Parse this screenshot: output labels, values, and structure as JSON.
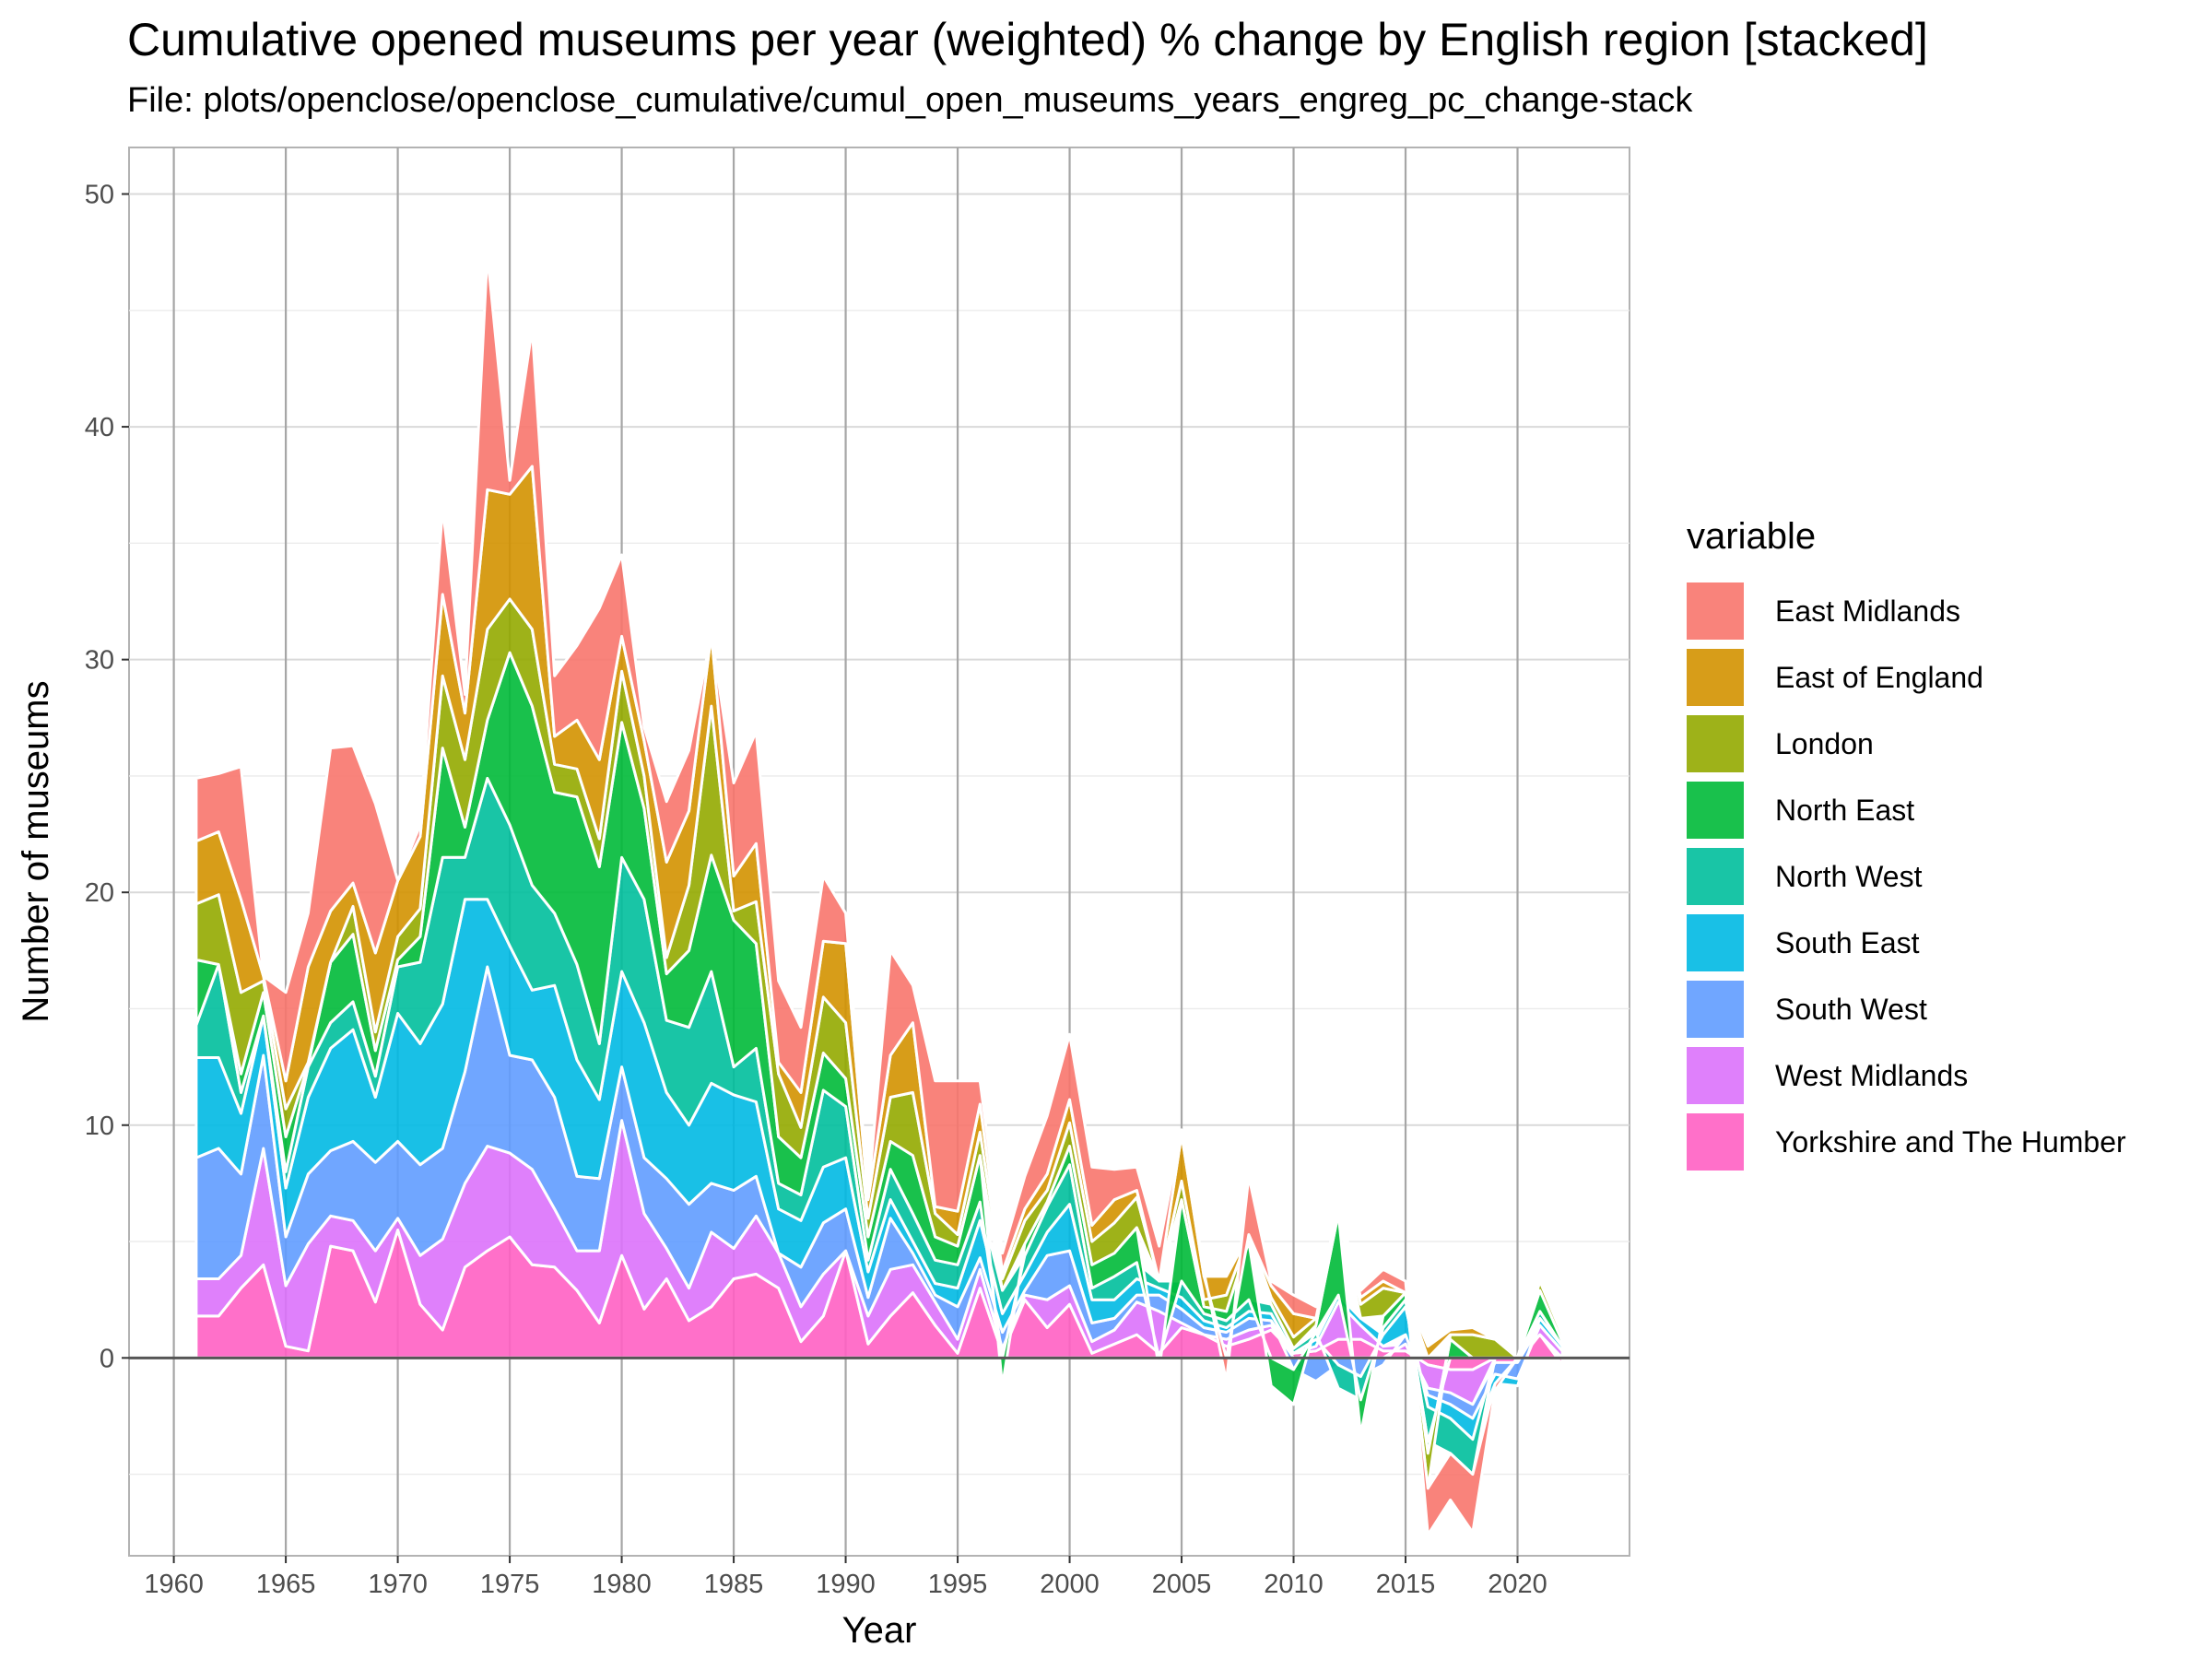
{
  "chart_data": {
    "type": "area",
    "stacked": true,
    "title": "Cumulative opened museums per year (weighted) % change by English region [stacked]",
    "subtitle": "File: plots/openclose/openclose_cumulative/cumul_open_museums_years_engreg_pc_change-stack",
    "xlabel": "Year",
    "ylabel": "Number of museums",
    "xlim": [
      1958,
      2025
    ],
    "ylim": [
      -8.5,
      52
    ],
    "x_ticks": [
      1960,
      1965,
      1970,
      1975,
      1980,
      1985,
      1990,
      1995,
      2000,
      2005,
      2010,
      2015,
      2020
    ],
    "y_ticks": [
      0,
      10,
      20,
      30,
      40,
      50
    ],
    "grid": true,
    "legend_title": "variable",
    "legend_position": "right",
    "x": [
      1961,
      1962,
      1963,
      1964,
      1965,
      1966,
      1967,
      1968,
      1969,
      1970,
      1971,
      1972,
      1973,
      1974,
      1975,
      1976,
      1977,
      1978,
      1979,
      1980,
      1981,
      1982,
      1983,
      1984,
      1985,
      1986,
      1987,
      1988,
      1989,
      1990,
      1991,
      1992,
      1993,
      1994,
      1995,
      1996,
      1997,
      1998,
      1999,
      2000,
      2001,
      2002,
      2003,
      2004,
      2005,
      2006,
      2007,
      2008,
      2009,
      2010,
      2011,
      2012,
      2013,
      2014,
      2015,
      2016,
      2017,
      2018,
      2019,
      2020,
      2021,
      2022
    ],
    "series": [
      {
        "name": "Yorkshire and The Humber",
        "color": "#FF61C3",
        "values": [
          1.8,
          1.8,
          3.0,
          4.0,
          0.5,
          0.3,
          4.8,
          4.6,
          2.4,
          5.5,
          2.3,
          1.2,
          3.9,
          4.6,
          5.2,
          4.0,
          3.9,
          2.9,
          1.5,
          4.4,
          2.1,
          3.4,
          1.6,
          2.2,
          3.4,
          3.6,
          3.0,
          0.7,
          1.8,
          4.6,
          0.6,
          1.8,
          2.8,
          1.4,
          0.2,
          3.0,
          0.2,
          2.5,
          1.3,
          2.3,
          0.2,
          0.6,
          1.0,
          0.2,
          1.3,
          1.0,
          0.5,
          0.8,
          1.2,
          0.2,
          0.3,
          0.8,
          0.8,
          0.3,
          0.3,
          -0.3,
          -0.5,
          -0.5,
          -0.2,
          -0.2,
          1.0,
          -0.3
        ]
      },
      {
        "name": "West Midlands",
        "color": "#DB72FB",
        "values": [
          1.6,
          1.6,
          1.4,
          5.0,
          2.6,
          4.6,
          1.3,
          1.3,
          2.2,
          0.5,
          2.1,
          3.9,
          3.6,
          4.5,
          3.6,
          4.1,
          2.5,
          1.7,
          3.1,
          5.8,
          4.1,
          1.3,
          1.4,
          3.2,
          1.3,
          2.5,
          1.5,
          1.5,
          1.8,
          0.0,
          1.2,
          2.0,
          1.2,
          1.0,
          0.6,
          0.8,
          0.2,
          0.2,
          1.2,
          0.8,
          0.5,
          0.6,
          1.4,
          1.8,
          0.2,
          0.0,
          0.3,
          0.4,
          0.2,
          0.0,
          0.2,
          1.6,
          0.6,
          0.2,
          0.3,
          -1.0,
          -1.0,
          -1.5,
          0.0,
          0.0,
          0.4,
          0.3
        ]
      },
      {
        "name": "South West",
        "color": "#619CFF",
        "values": [
          5.2,
          5.6,
          3.5,
          4.0,
          2.1,
          3.0,
          2.8,
          3.4,
          3.8,
          3.3,
          3.9,
          3.9,
          4.8,
          7.7,
          4.2,
          4.7,
          4.8,
          3.2,
          3.1,
          2.3,
          2.4,
          3.0,
          3.6,
          2.1,
          2.5,
          1.7,
          0.0,
          1.7,
          2.2,
          1.8,
          0.8,
          2.2,
          0.5,
          0.3,
          1.4,
          0.5,
          0.7,
          0.2,
          1.9,
          1.5,
          0.8,
          0.5,
          0.3,
          0.7,
          0.6,
          0.3,
          0.3,
          0.5,
          0.2,
          -0.5,
          -1.0,
          -0.3,
          -0.8,
          -0.3,
          0.4,
          -0.3,
          -0.5,
          -0.6,
          -0.5,
          -0.7,
          0.0,
          0.0
        ]
      },
      {
        "name": "South East",
        "color": "#00B9E3",
        "values": [
          4.3,
          3.9,
          2.6,
          1.7,
          2.1,
          3.3,
          4.4,
          4.8,
          2.8,
          5.5,
          5.2,
          6.2,
          7.4,
          2.9,
          4.7,
          3.0,
          4.8,
          5.0,
          3.4,
          4.1,
          5.8,
          3.7,
          3.4,
          4.3,
          4.1,
          3.2,
          1.9,
          2.0,
          2.4,
          2.2,
          1.1,
          0.8,
          0.5,
          0.5,
          0.8,
          1.6,
          0.8,
          0.7,
          1.0,
          2.0,
          1.0,
          0.8,
          0.7,
          0.3,
          0.5,
          0.3,
          0.2,
          0.3,
          0.3,
          0.0,
          0.3,
          0.3,
          0.3,
          0.5,
          1.2,
          -0.5,
          -0.6,
          -0.9,
          -0.4,
          -0.3,
          0.3,
          0.2
        ]
      },
      {
        "name": "North West",
        "color": "#00BF9C",
        "values": [
          1.4,
          4.0,
          0.9,
          0.0,
          0.7,
          1.3,
          1.1,
          1.2,
          0.9,
          2.0,
          3.5,
          6.3,
          1.8,
          5.2,
          5.2,
          4.5,
          3.1,
          4.1,
          2.4,
          4.9,
          5.3,
          3.1,
          4.2,
          4.8,
          1.2,
          2.3,
          1.1,
          1.1,
          3.3,
          2.2,
          0.5,
          1.3,
          1.2,
          1.0,
          1.0,
          0.8,
          1.0,
          0.8,
          1.1,
          1.7,
          0.5,
          1.0,
          0.7,
          0.3,
          0.7,
          0.3,
          0.3,
          0.5,
          0.4,
          0.2,
          0.3,
          -1.0,
          -1.0,
          0.3,
          0.3,
          -1.5,
          -1.5,
          -1.5,
          0.0,
          0.0,
          0.3,
          0.0
        ]
      },
      {
        "name": "North East",
        "color": "#00BA38",
        "values": [
          2.8,
          0.0,
          0.8,
          1.0,
          1.5,
          0.1,
          2.6,
          2.9,
          1.1,
          0.3,
          1.1,
          4.7,
          1.3,
          2.5,
          7.4,
          7.7,
          5.2,
          7.2,
          7.6,
          5.8,
          3.9,
          2.0,
          3.3,
          5.0,
          6.3,
          4.5,
          2.0,
          1.6,
          1.6,
          1.2,
          1.0,
          1.2,
          2.5,
          1.0,
          0.8,
          2.0,
          -1.2,
          0.5,
          0.2,
          0.8,
          1.0,
          1.0,
          1.5,
          -0.5,
          3.5,
          0.3,
          0.4,
          2.5,
          -1.2,
          -1.5,
          0.3,
          3.5,
          -1.5,
          0.5,
          0.3,
          -0.5,
          0.8,
          0.0,
          0.0,
          0.0,
          0.9,
          0.2
        ]
      },
      {
        "name": "London",
        "color": "#93AA00",
        "values": [
          2.4,
          3.0,
          3.5,
          0.5,
          1.2,
          0.1,
          0.0,
          1.2,
          0.8,
          1.0,
          1.2,
          3.1,
          2.9,
          3.9,
          2.3,
          3.3,
          1.2,
          1.2,
          1.2,
          2.2,
          1.4,
          0.7,
          2.8,
          6.4,
          0.4,
          1.8,
          2.7,
          1.3,
          2.4,
          2.4,
          0.8,
          1.9,
          2.7,
          1.0,
          0.5,
          1.0,
          0.5,
          1.0,
          0.5,
          1.0,
          1.0,
          1.3,
          1.3,
          0.0,
          0.8,
          0.3,
          0.7,
          0.3,
          0.3,
          0.5,
          0.3,
          0.3,
          0.6,
          1.2,
          0.0,
          -1.5,
          0.2,
          1.0,
          0.8,
          0.0,
          0.4,
          0.3
        ]
      },
      {
        "name": "East of England",
        "color": "#D39200",
        "values": [
          2.7,
          2.7,
          4.0,
          0.2,
          1.2,
          4.1,
          2.2,
          1.0,
          3.4,
          2.4,
          3.1,
          3.5,
          2.0,
          6.0,
          4.5,
          7.0,
          1.2,
          2.1,
          3.4,
          1.5,
          1.5,
          4.1,
          3.2,
          3.1,
          1.5,
          2.5,
          0.5,
          1.5,
          2.4,
          3.4,
          0.8,
          1.8,
          3.0,
          0.3,
          1.0,
          1.2,
          0.3,
          0.5,
          0.7,
          1.0,
          0.7,
          1.0,
          0.3,
          0.0,
          2.0,
          1.0,
          0.8,
          0.0,
          0.5,
          1.0,
          0.0,
          0.0,
          0.3,
          0.3,
          0.0,
          0.5,
          0.2,
          0.3,
          0.0,
          0.0,
          0.0,
          0.0
        ]
      },
      {
        "name": "East Midlands",
        "color": "#F8766D",
        "values": [
          2.7,
          2.5,
          5.7,
          0.0,
          3.8,
          2.3,
          7.0,
          5.9,
          6.4,
          0.0,
          0.5,
          3.7,
          0.8,
          10.1,
          0.6,
          5.9,
          2.6,
          3.2,
          6.5,
          3.5,
          0.6,
          2.6,
          2.6,
          0.0,
          4.0,
          4.8,
          3.5,
          2.8,
          2.8,
          1.3,
          0.2,
          4.5,
          1.6,
          5.4,
          5.6,
          1.0,
          0.8,
          1.4,
          2.5,
          2.8,
          2.5,
          1.3,
          1.0,
          1.5,
          0.2,
          0.2,
          -1.0,
          2.5,
          0.2,
          0.8,
          0.5,
          0.0,
          0.3,
          0.5,
          0.5,
          -2.0,
          -2.0,
          -2.5,
          -0.3,
          0.0,
          0.0,
          0.0
        ]
      }
    ]
  },
  "legend_order": [
    "East Midlands",
    "East of England",
    "London",
    "North East",
    "North West",
    "South East",
    "South West",
    "West Midlands",
    "Yorkshire and The Humber"
  ]
}
